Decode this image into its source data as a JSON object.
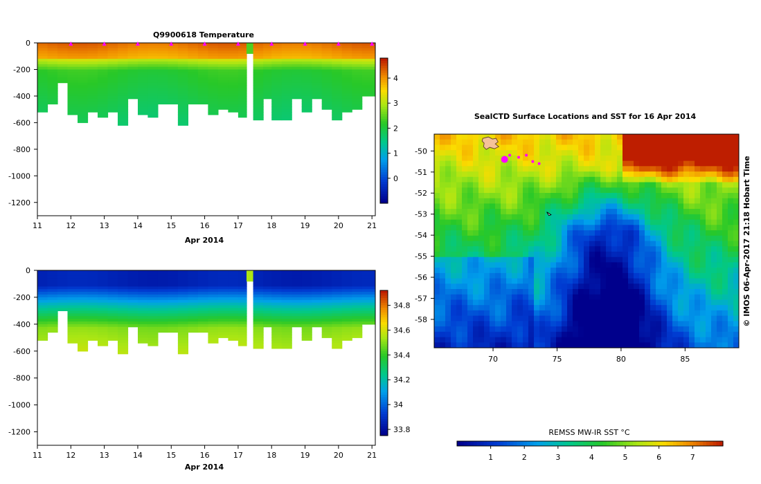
{
  "chart_data": [
    {
      "type": "heatmap",
      "title": "Q9900618  Temperature",
      "xlabel": "Apr 2014",
      "ylabel": "",
      "xlim": [
        11,
        21.1
      ],
      "ylim": [
        -1300,
        0
      ],
      "x_ticks": [
        "11",
        "12",
        "13",
        "14",
        "15",
        "16",
        "17",
        "18",
        "19",
        "20",
        "21"
      ],
      "y_ticks": [
        "0",
        "-200",
        "-400",
        "-600",
        "-800",
        "-1000",
        "-1200"
      ],
      "colorbar": {
        "range": [
          -1,
          4.8
        ],
        "ticks": [
          "0",
          "1",
          "2",
          "3",
          "4"
        ]
      },
      "profiles": {
        "x": [
          11.0,
          11.3,
          11.6,
          11.9,
          12.2,
          12.5,
          12.8,
          13.1,
          13.4,
          13.7,
          14.0,
          14.3,
          14.6,
          14.9,
          15.2,
          15.5,
          15.8,
          16.1,
          16.4,
          16.7,
          17.0,
          17.25,
          17.45,
          17.75,
          18.0,
          18.3,
          18.6,
          18.9,
          19.2,
          19.5,
          19.8,
          20.1,
          20.4,
          20.7
        ],
        "max_depth": [
          -510,
          -450,
          -300,
          -530,
          -600,
          -520,
          -550,
          -510,
          -610,
          -420,
          -540,
          -550,
          -460,
          -460,
          -620,
          -450,
          -460,
          -540,
          -500,
          -520,
          -550,
          -80,
          -580,
          -410,
          -580,
          -580,
          -420,
          -520,
          -420,
          -500,
          -570,
          -520,
          -490,
          -400
        ],
        "surface_value": 4.3,
        "deep_value": 2.1
      },
      "markers_x": [
        12,
        13,
        14,
        15,
        16,
        17,
        18,
        19,
        20,
        21
      ]
    },
    {
      "type": "heatmap",
      "title": "",
      "xlabel": "Apr 2014",
      "ylabel": "",
      "xlim": [
        11,
        21.1
      ],
      "ylim": [
        -1300,
        0
      ],
      "x_ticks": [
        "11",
        "12",
        "13",
        "14",
        "15",
        "16",
        "17",
        "18",
        "19",
        "20",
        "21"
      ],
      "y_ticks": [
        "0",
        "-200",
        "-400",
        "-600",
        "-800",
        "-1000",
        "-1200"
      ],
      "colorbar": {
        "range": [
          33.75,
          34.92
        ],
        "ticks": [
          "33.8",
          "34",
          "34.2",
          "34.4",
          "34.6",
          "34.8"
        ]
      },
      "profiles": {
        "surface_value": 33.85,
        "deep_value": 34.55
      }
    },
    {
      "type": "heatmap",
      "title": "SealCTD Surface Locations and SST for 16 Apr 2014",
      "xlabel": "",
      "ylabel": "",
      "xlim": [
        65.4,
        89.2
      ],
      "ylim": [
        -59.35,
        -49.2
      ],
      "x_ticks": [
        "70",
        "75",
        "80",
        "85"
      ],
      "y_ticks": [
        "-50",
        "-51",
        "-52",
        "-53",
        "-54",
        "-55",
        "-56",
        "-57",
        "-58"
      ],
      "colorbar": {
        "label": "REMSS MW-IR SST °C",
        "range": [
          0,
          7.9
        ],
        "ticks": [
          "1",
          "2",
          "3",
          "4",
          "5",
          "6",
          "7"
        ]
      },
      "track_points": [
        [
          70.9,
          -50.4
        ],
        [
          71.3,
          -50.2
        ],
        [
          72.0,
          -50.3
        ],
        [
          72.6,
          -50.2
        ],
        [
          73.1,
          -50.5
        ],
        [
          73.6,
          -50.6
        ]
      ],
      "side_label": "© IMOS 06-Apr-2017 21:18 Hobart Time"
    }
  ]
}
